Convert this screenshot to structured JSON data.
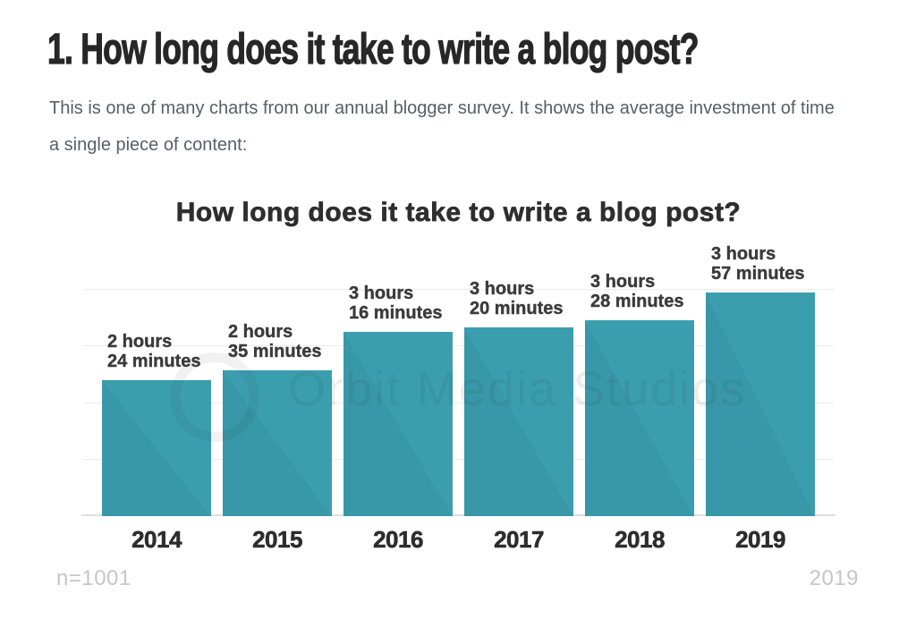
{
  "article": {
    "heading": "1. How long does it take to write a blog post?",
    "intro_lines": [
      "This is one of many charts from our annual blogger survey. It shows the average investment of time",
      "a single piece of content:"
    ]
  },
  "chart_data": {
    "type": "bar",
    "title": "How long does it take to write a blog post?",
    "categories": [
      "2014",
      "2015",
      "2016",
      "2017",
      "2018",
      "2019"
    ],
    "values": [
      144,
      155,
      196,
      200,
      208,
      237
    ],
    "values_unit": "minutes",
    "bar_labels": [
      [
        "2 hours",
        "24 minutes"
      ],
      [
        "2 hours",
        "35 minutes"
      ],
      [
        "3 hours",
        "16 minutes"
      ],
      [
        "3 hours",
        "20 minutes"
      ],
      [
        "3 hours",
        "28 minutes"
      ],
      [
        "3 hours",
        "57 minutes"
      ]
    ],
    "xlabel": "",
    "ylabel": "",
    "ylim_hours": [
      0,
      4.2
    ],
    "gridlines_hours": [
      1,
      2,
      3,
      4
    ],
    "grid": true,
    "legend": false,
    "bar_color": "#3A9EAF",
    "label_color": "#3b3b3b",
    "gridline_color": "#ececec",
    "footnote_left": "n=1001",
    "footnote_right": "2019",
    "watermark": "Orbit Media Studios"
  }
}
